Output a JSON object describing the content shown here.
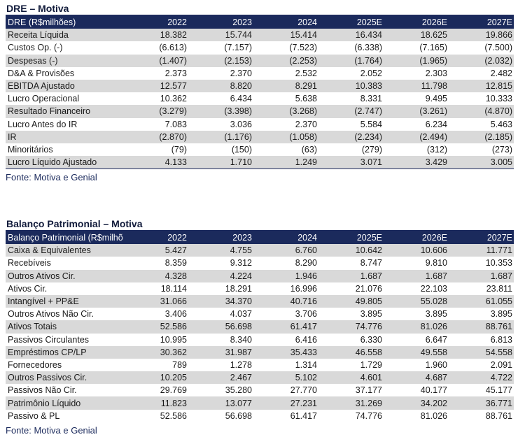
{
  "dre": {
    "title": "DRE – Motiva",
    "header": [
      "DRE (R$milhões)",
      "2022",
      "2023",
      "2024",
      "2025E",
      "2026E",
      "2027E"
    ],
    "rows": [
      [
        "Receita Líquida",
        "18.382",
        "15.744",
        "15.414",
        "16.434",
        "18.625",
        "19.866"
      ],
      [
        "Custos Op. (-)",
        "(6.613)",
        "(7.157)",
        "(7.523)",
        "(6.338)",
        "(7.165)",
        "(7.500)"
      ],
      [
        "Despesas (-)",
        "(1.407)",
        "(2.153)",
        "(2.253)",
        "(1.764)",
        "(1.965)",
        "(2.032)"
      ],
      [
        "D&A & Provisões",
        "2.373",
        "2.370",
        "2.532",
        "2.052",
        "2.303",
        "2.482"
      ],
      [
        "EBITDA Ajustado",
        "12.577",
        "8.820",
        "8.291",
        "10.383",
        "11.798",
        "12.815"
      ],
      [
        "Lucro Operacional",
        "10.362",
        "6.434",
        "5.638",
        "8.331",
        "9.495",
        "10.333"
      ],
      [
        "Resultado Financeiro",
        "(3.279)",
        "(3.398)",
        "(3.268)",
        "(2.747)",
        "(3.261)",
        "(4.870)"
      ],
      [
        "Lucro Antes do IR",
        "7.083",
        "3.036",
        "2.370",
        "5.584",
        "6.234",
        "5.463"
      ],
      [
        "IR",
        "(2.870)",
        "(1.176)",
        "(1.058)",
        "(2.234)",
        "(2.494)",
        "(2.185)"
      ],
      [
        "Minoritários",
        "(79)",
        "(150)",
        "(63)",
        "(279)",
        "(312)",
        "(273)"
      ],
      [
        "Lucro Líquido Ajustado",
        "4.133",
        "1.710",
        "1.249",
        "3.071",
        "3.429",
        "3.005"
      ]
    ],
    "source": "Fonte: Motiva e Genial"
  },
  "balanco": {
    "title": "Balanço Patrimonial – Motiva",
    "header": [
      "Balanço Patrimonial (R$milhões)",
      "2022",
      "2023",
      "2024",
      "2025E",
      "2026E",
      "2027E"
    ],
    "rows": [
      [
        "Caixa & Equivalentes",
        "5.427",
        "4.755",
        "6.760",
        "10.642",
        "10.606",
        "11.771"
      ],
      [
        "Recebíveis",
        "8.359",
        "9.312",
        "8.290",
        "8.747",
        "9.810",
        "10.353"
      ],
      [
        "Outros Ativos Cir.",
        "4.328",
        "4.224",
        "1.946",
        "1.687",
        "1.687",
        "1.687"
      ],
      [
        "Ativos Cir.",
        "18.114",
        "18.291",
        "16.996",
        "21.076",
        "22.103",
        "23.811"
      ],
      [
        "Intangível + PP&E",
        "31.066",
        "34.370",
        "40.716",
        "49.805",
        "55.028",
        "61.055"
      ],
      [
        "Outros Ativos Não Cir.",
        "3.406",
        "4.037",
        "3.706",
        "3.895",
        "3.895",
        "3.895"
      ],
      [
        "Ativos Totais",
        "52.586",
        "56.698",
        "61.417",
        "74.776",
        "81.026",
        "88.761"
      ],
      [
        "Passivos Circulantes",
        "10.995",
        "8.340",
        "6.416",
        "6.330",
        "6.647",
        "6.813"
      ],
      [
        "Empréstimos CP/LP",
        "30.362",
        "31.987",
        "35.433",
        "46.558",
        "49.558",
        "54.558"
      ],
      [
        "Fornecedores",
        "789",
        "1.278",
        "1.314",
        "1.729",
        "1.960",
        "2.091"
      ],
      [
        "Outros Passivos Cir.",
        "10.205",
        "2.467",
        "5.102",
        "4.601",
        "4.687",
        "4.722"
      ],
      [
        "Passivos Não Cir.",
        "29.769",
        "35.280",
        "27.770",
        "37.177",
        "40.177",
        "45.177"
      ],
      [
        "Patrimônio Líquido",
        "11.823",
        "13.077",
        "27.231",
        "31.269",
        "34.202",
        "36.771"
      ],
      [
        "Passivo & PL",
        "52.586",
        "56.698",
        "61.417",
        "74.776",
        "81.026",
        "88.761"
      ]
    ],
    "source": "Fonte: Motiva e Genial"
  },
  "colors": {
    "header_bg": "#1b2a5c",
    "stripe": "#d9d9d9",
    "title": "#101a3a"
  }
}
